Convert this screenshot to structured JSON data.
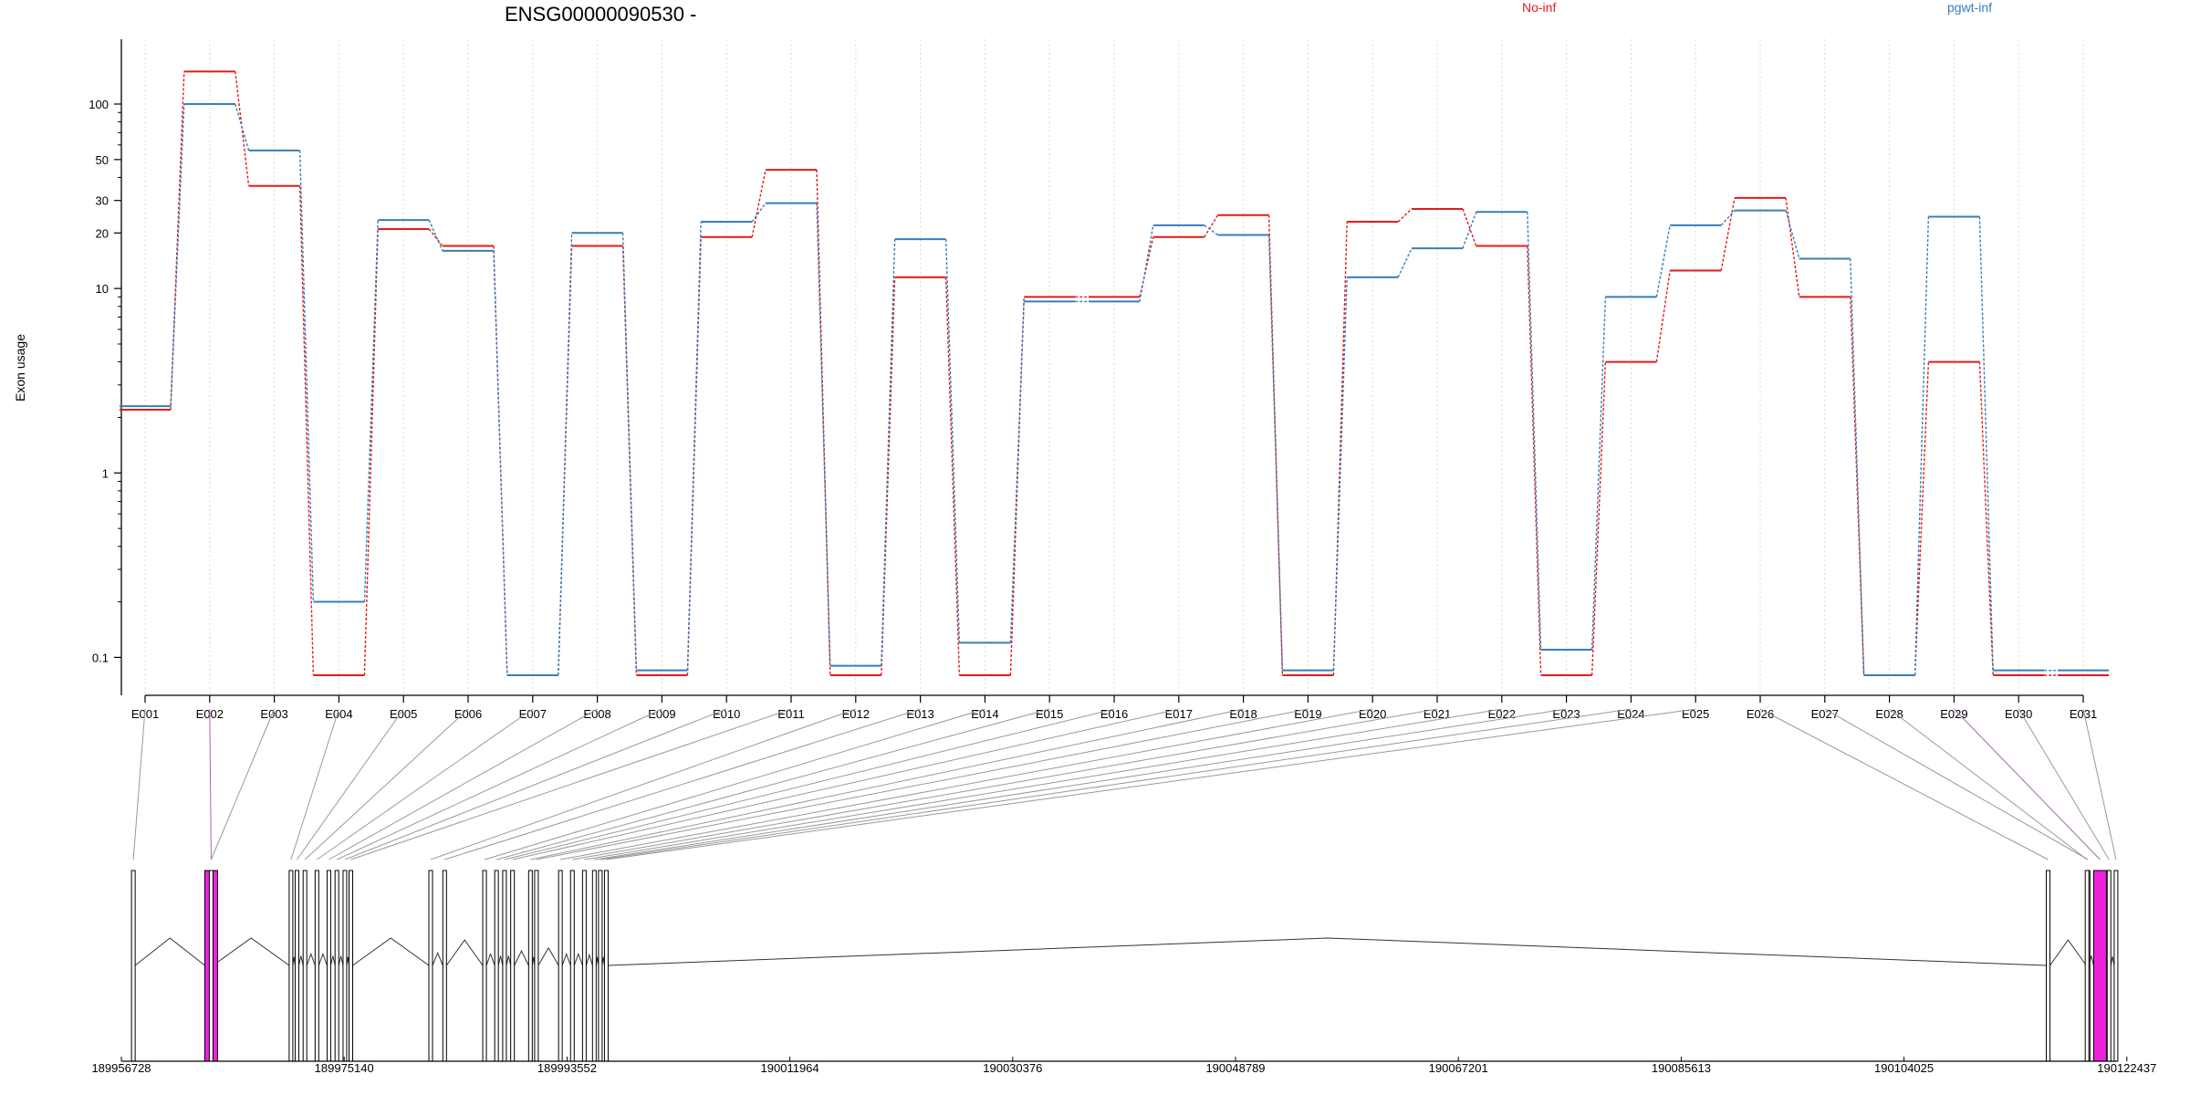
{
  "chart_data": {
    "type": "line",
    "title": "ENSG00000090530 -",
    "ylabel": "Exon usage",
    "xlabel": "",
    "yscale": "log",
    "ylim": [
      0.08,
      185
    ],
    "yticks": [
      0.1,
      1,
      10,
      20,
      30,
      50,
      100
    ],
    "grid": "vertical dotted lines at exon positions",
    "legend_placement": "top-right",
    "categories": [
      "E001",
      "E002",
      "E003",
      "E004",
      "E005",
      "E006",
      "E007",
      "E008",
      "E009",
      "E010",
      "E011",
      "E012",
      "E013",
      "E014",
      "E015",
      "E016",
      "E017",
      "E018",
      "E019",
      "E020",
      "E021",
      "E022",
      "E023",
      "E024",
      "E025",
      "E026",
      "E027",
      "E028",
      "E029",
      "E030",
      "E031"
    ],
    "series": [
      {
        "name": "No-inf",
        "color": "#e41a1c",
        "values": [
          2.2,
          150,
          36,
          0.08,
          21,
          17,
          0.08,
          17,
          0.08,
          19,
          44,
          0.08,
          11.5,
          0.08,
          9,
          9,
          19,
          25,
          0.08,
          23,
          27,
          17,
          0.08,
          4,
          12.5,
          31,
          9,
          0.08,
          4,
          0.08,
          0.08
        ]
      },
      {
        "name": "pgwt-inf",
        "color": "#377eb8",
        "values": [
          2.3,
          100,
          56,
          0.2,
          23.5,
          16,
          0.08,
          20,
          0.085,
          23,
          29,
          0.09,
          18.5,
          0.12,
          8.5,
          8.5,
          22,
          19.5,
          0.085,
          11.5,
          16.5,
          26,
          0.11,
          9,
          22,
          26.5,
          14.5,
          0.08,
          24.5,
          0.085,
          0.085
        ]
      }
    ],
    "genomic_axis": {
      "tick_labels": [
        "189956728",
        "189975140",
        "189993552",
        "190011964",
        "190030376",
        "190048789",
        "190067201",
        "190085613",
        "190104025",
        "190122437"
      ]
    }
  },
  "gene_model": {
    "exon_color": "#ffffff",
    "highlight_color": "#ee22dd",
    "exon_fractions": [
      0.006,
      0.045,
      0.045,
      0.085,
      0.088,
      0.092,
      0.098,
      0.104,
      0.108,
      0.112,
      0.115,
      0.155,
      0.162,
      0.182,
      0.188,
      0.192,
      0.196,
      0.205,
      0.208,
      0.22,
      0.226,
      0.232,
      0.237,
      0.24,
      0.243,
      0.9655,
      0.9855,
      0.985,
      0.9915,
      0.996,
      0.9995
    ],
    "highlighted_exons": [
      "E002",
      "E029"
    ]
  }
}
